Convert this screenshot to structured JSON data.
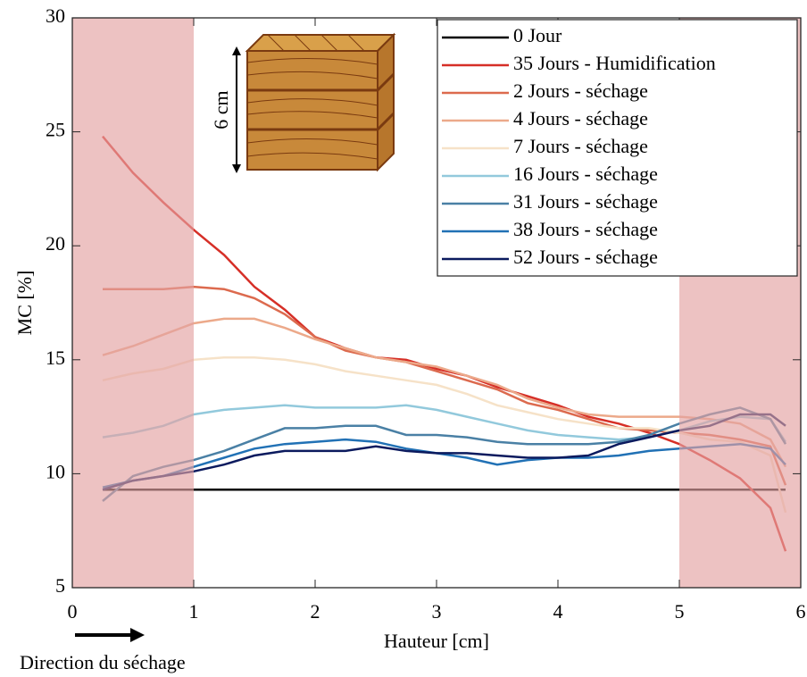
{
  "chart_data": {
    "type": "line",
    "xlabel": "Hauteur [cm]",
    "ylabel": "MC [%]",
    "annotations": [
      "6 cm",
      "Direction du séchage"
    ],
    "x": [
      0.25,
      0.5,
      0.75,
      1,
      1.25,
      1.5,
      1.75,
      2,
      2.25,
      2.5,
      2.75,
      3,
      3.25,
      3.5,
      3.75,
      4,
      4.25,
      4.5,
      4.75,
      5,
      5.25,
      5.5,
      5.75,
      5.875
    ],
    "series": [
      {
        "name": "0 Jour",
        "color": "#000000",
        "values": [
          9.3,
          9.3,
          9.3,
          9.3,
          9.3,
          9.3,
          9.3,
          9.3,
          9.3,
          9.3,
          9.3,
          9.3,
          9.3,
          9.3,
          9.3,
          9.3,
          9.3,
          9.3,
          9.3,
          9.3,
          9.3,
          9.3,
          9.3,
          9.3
        ]
      },
      {
        "name": "35 Jours - Humidification",
        "color": "#d62f27",
        "values": [
          24.8,
          23.2,
          21.9,
          20.7,
          19.6,
          18.2,
          17.2,
          16.0,
          15.5,
          15.1,
          15.0,
          14.6,
          14.3,
          13.8,
          13.4,
          13.0,
          12.5,
          12.2,
          11.8,
          11.3,
          10.6,
          9.8,
          8.5,
          6.6
        ]
      },
      {
        "name": "2 Jours - séchage",
        "color": "#dc6a4e",
        "values": [
          18.1,
          18.1,
          18.1,
          18.2,
          18.1,
          17.7,
          17.0,
          16.0,
          15.4,
          15.1,
          14.9,
          14.5,
          14.1,
          13.7,
          13.1,
          12.8,
          12.4,
          12.0,
          11.9,
          11.8,
          11.7,
          11.5,
          11.2,
          9.5
        ]
      },
      {
        "name": "4 Jours - séchage",
        "color": "#eca98a",
        "values": [
          15.2,
          15.6,
          16.1,
          16.6,
          16.8,
          16.8,
          16.4,
          15.9,
          15.5,
          15.1,
          14.9,
          14.7,
          14.3,
          13.9,
          13.3,
          12.9,
          12.6,
          12.5,
          12.5,
          12.5,
          12.4,
          12.2,
          11.5,
          10.3
        ]
      },
      {
        "name": "7 Jours - séchage",
        "color": "#f6e2c8",
        "values": [
          14.1,
          14.4,
          14.6,
          15.0,
          15.1,
          15.1,
          15.0,
          14.8,
          14.5,
          14.3,
          14.1,
          13.9,
          13.5,
          13.0,
          12.7,
          12.4,
          12.2,
          12.0,
          12.0,
          11.8,
          11.5,
          11.4,
          10.8,
          8.3
        ]
      },
      {
        "name": "16 Jours - séchage",
        "color": "#92c9dc",
        "values": [
          11.6,
          11.8,
          12.1,
          12.6,
          12.8,
          12.9,
          13.0,
          12.9,
          12.9,
          12.9,
          13.0,
          12.8,
          12.5,
          12.2,
          11.9,
          11.7,
          11.6,
          11.5,
          11.6,
          11.9,
          12.3,
          12.5,
          12.4,
          11.4
        ]
      },
      {
        "name": "31 Jours - séchage",
        "color": "#4a80a5",
        "values": [
          8.8,
          9.9,
          10.3,
          10.6,
          11.0,
          11.5,
          12.0,
          12.0,
          12.1,
          12.1,
          11.7,
          11.7,
          11.6,
          11.4,
          11.3,
          11.3,
          11.3,
          11.4,
          11.7,
          12.2,
          12.6,
          12.9,
          12.4,
          11.3
        ]
      },
      {
        "name": "38 Jours - séchage",
        "color": "#2171b5",
        "values": [
          9.4,
          9.7,
          9.9,
          10.3,
          10.7,
          11.1,
          11.3,
          11.4,
          11.5,
          11.4,
          11.1,
          10.9,
          10.7,
          10.4,
          10.6,
          10.7,
          10.7,
          10.8,
          11.0,
          11.1,
          11.2,
          11.3,
          11.1,
          10.4
        ]
      },
      {
        "name": "52 Jours - séchage",
        "color": "#0b1a5e",
        "values": [
          9.3,
          9.7,
          9.9,
          10.1,
          10.4,
          10.8,
          11.0,
          11.0,
          11.0,
          11.2,
          11.0,
          10.9,
          10.9,
          10.8,
          10.7,
          10.7,
          10.8,
          11.3,
          11.6,
          11.9,
          12.1,
          12.6,
          12.6,
          12.1
        ]
      }
    ],
    "shaded_regions": [
      [
        0,
        1
      ],
      [
        5,
        6
      ]
    ],
    "shade_color": "#e3a2a2",
    "xlim": [
      0,
      6
    ],
    "xticks": [
      0,
      1,
      2,
      3,
      4,
      5,
      6
    ],
    "ylim": [
      5,
      30
    ],
    "yticks": [
      5,
      10,
      15,
      20,
      25,
      30
    ],
    "legend": "northeast"
  }
}
